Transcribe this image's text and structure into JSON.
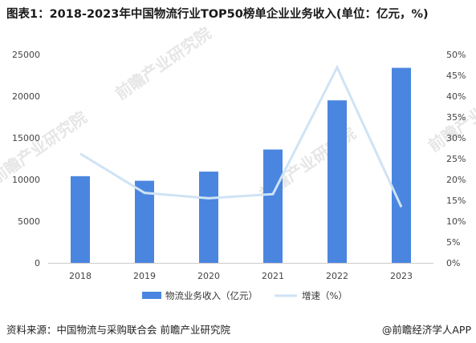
{
  "title": "图表1：2018-2023年中国物流行业TOP50榜单企业业务收入(单位：亿元，%)",
  "source_left": "资料来源：中国物流与采购联合会 前瞻产业研究院",
  "source_right": "@前瞻经济学人APP",
  "watermark": "前瞻产业研究院",
  "colors": {
    "bar": "#4a86e0",
    "line": "#cfe3f5"
  },
  "chart_data": {
    "type": "bar",
    "categories": [
      "2018",
      "2019",
      "2020",
      "2021",
      "2022",
      "2023"
    ],
    "series": [
      {
        "name": "物流业务收入（亿元）",
        "type": "bar",
        "axis": "left",
        "values": [
          10400,
          9850,
          10950,
          13600,
          19500,
          23400
        ]
      },
      {
        "name": "增速（%）",
        "type": "line",
        "axis": "right",
        "values": [
          26.2,
          16.8,
          15.5,
          16.5,
          46.9,
          13.4
        ]
      }
    ],
    "y_left": {
      "min": 0,
      "max": 25000,
      "ticks": [
        "0",
        "5000",
        "10000",
        "15000",
        "20000",
        "25000"
      ]
    },
    "y_right": {
      "min": 0,
      "max": 50,
      "ticks": [
        "0%",
        "5%",
        "10%",
        "15%",
        "20%",
        "25%",
        "30%",
        "35%",
        "40%",
        "45%",
        "50%"
      ]
    },
    "legend_position": "bottom",
    "grid": false
  }
}
